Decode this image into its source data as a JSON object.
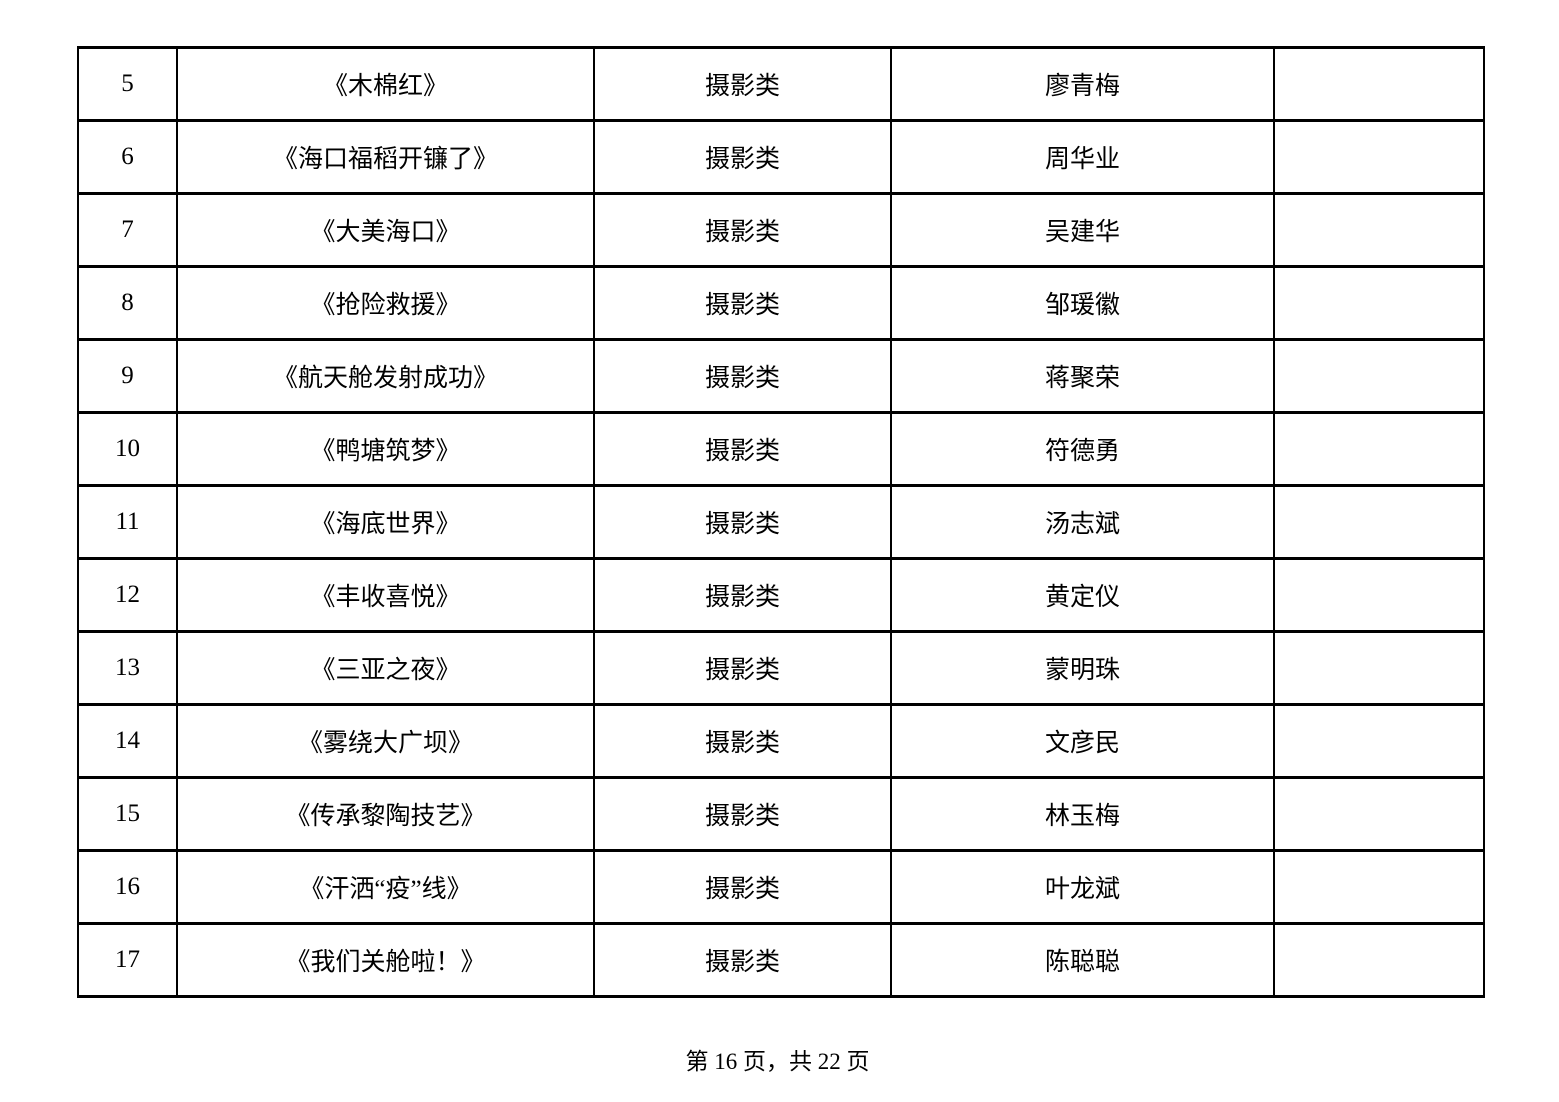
{
  "document": {
    "footer": {
      "page_indicator": "第 16 页，共 22 页"
    }
  },
  "table": {
    "rows": [
      {
        "no": "5",
        "title": "《木棉红》",
        "category": "摄影类",
        "author": "廖青梅",
        "note": ""
      },
      {
        "no": "6",
        "title": "《海口福稻开镰了》",
        "category": "摄影类",
        "author": "周华业",
        "note": ""
      },
      {
        "no": "7",
        "title": "《大美海口》",
        "category": "摄影类",
        "author": "吴建华",
        "note": ""
      },
      {
        "no": "8",
        "title": "《抢险救援》",
        "category": "摄影类",
        "author": "邹瑗徽",
        "note": ""
      },
      {
        "no": "9",
        "title": "《航天舱发射成功》",
        "category": "摄影类",
        "author": "蒋聚荣",
        "note": ""
      },
      {
        "no": "10",
        "title": "《鸭塘筑梦》",
        "category": "摄影类",
        "author": "符德勇",
        "note": ""
      },
      {
        "no": "11",
        "title": "《海底世界》",
        "category": "摄影类",
        "author": "汤志斌",
        "note": ""
      },
      {
        "no": "12",
        "title": "《丰收喜悦》",
        "category": "摄影类",
        "author": "黄定仪",
        "note": ""
      },
      {
        "no": "13",
        "title": "《三亚之夜》",
        "category": "摄影类",
        "author": "蒙明珠",
        "note": ""
      },
      {
        "no": "14",
        "title": "《雾绕大广坝》",
        "category": "摄影类",
        "author": "文彦民",
        "note": ""
      },
      {
        "no": "15",
        "title": "《传承黎陶技艺》",
        "category": "摄影类",
        "author": "林玉梅",
        "note": ""
      },
      {
        "no": "16",
        "title": "《汗洒“疫”线》",
        "category": "摄影类",
        "author": "叶龙斌",
        "note": ""
      },
      {
        "no": "17",
        "title": "《我们关舱啦！》",
        "category": "摄影类",
        "author": "陈聪聪",
        "note": ""
      }
    ]
  },
  "colors": {
    "text": "#000000",
    "border": "#000000",
    "background": "#ffffff"
  }
}
